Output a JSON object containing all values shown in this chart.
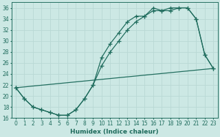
{
  "xlabel": "Humidex (Indice chaleur)",
  "bg_color": "#cce8e4",
  "grid_color": "#b8d8d4",
  "line_color": "#1e6b5c",
  "xlim": [
    -0.5,
    23.5
  ],
  "ylim": [
    16,
    37
  ],
  "xticks": [
    0,
    1,
    2,
    3,
    4,
    5,
    6,
    7,
    8,
    9,
    10,
    11,
    12,
    13,
    14,
    15,
    16,
    17,
    18,
    19,
    20,
    21,
    22,
    23
  ],
  "yticks": [
    16,
    18,
    20,
    22,
    24,
    26,
    28,
    30,
    32,
    34,
    36
  ],
  "line1_x": [
    0,
    1,
    2,
    3,
    4,
    5,
    6,
    7,
    8,
    9,
    10,
    11,
    12,
    13,
    14,
    15,
    16,
    17,
    18,
    19,
    20,
    21,
    22,
    23
  ],
  "line1_y": [
    21.5,
    19.5,
    18.0,
    17.5,
    17.0,
    16.5,
    16.5,
    17.5,
    19.5,
    22.0,
    27.0,
    29.5,
    31.5,
    33.5,
    34.5,
    34.5,
    36.0,
    35.5,
    36.0,
    36.0,
    36.0,
    34.0,
    27.5,
    25.0
  ],
  "line2_x": [
    0,
    1,
    2,
    3,
    4,
    5,
    6,
    7,
    8,
    9,
    10,
    11,
    12,
    13,
    14,
    15,
    16,
    17,
    18,
    19,
    20,
    21,
    22,
    23
  ],
  "line2_y": [
    21.5,
    19.5,
    18.0,
    17.5,
    17.0,
    16.5,
    16.5,
    17.5,
    19.5,
    22.0,
    25.5,
    28.0,
    30.0,
    32.0,
    33.5,
    34.5,
    35.5,
    35.5,
    35.5,
    36.0,
    36.0,
    34.0,
    27.5,
    25.0
  ],
  "line3_x": [
    0,
    23
  ],
  "line3_y": [
    21.5,
    25.0
  ]
}
